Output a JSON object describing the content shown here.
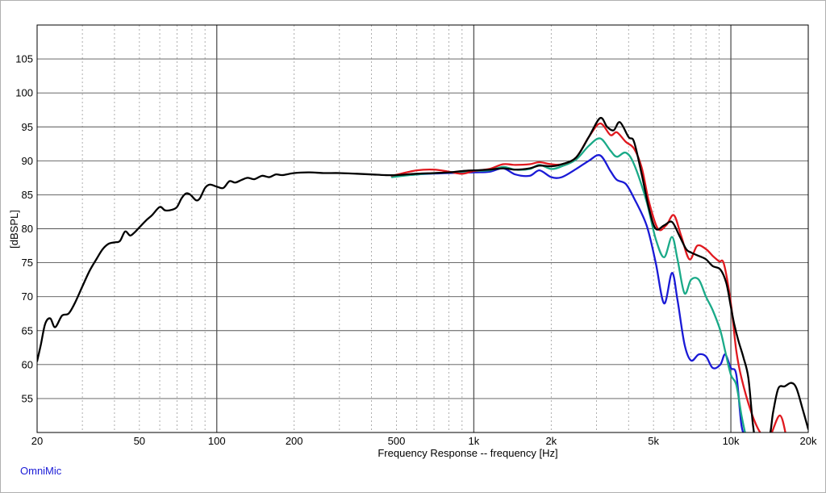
{
  "app": {
    "brand": "OmniMic",
    "brand_color": "#1a1ad6"
  },
  "chart_data": {
    "type": "line",
    "title": "",
    "xlabel": "Frequency Response -- frequency [Hz]",
    "ylabel": "[dBSPL]",
    "x_scale": "log",
    "xlim": [
      20,
      20000
    ],
    "ylim": [
      50,
      110
    ],
    "grid": true,
    "legend": "none",
    "x_tick_labels": [
      {
        "value": 20,
        "label": "20"
      },
      {
        "value": 50,
        "label": "50"
      },
      {
        "value": 100,
        "label": "100"
      },
      {
        "value": 200,
        "label": "200"
      },
      {
        "value": 500,
        "label": "500"
      },
      {
        "value": 1000,
        "label": "1k"
      },
      {
        "value": 2000,
        "label": "2k"
      },
      {
        "value": 5000,
        "label": "5k"
      },
      {
        "value": 10000,
        "label": "10k"
      },
      {
        "value": 20000,
        "label": "20k"
      }
    ],
    "y_ticks": [
      55,
      60,
      65,
      70,
      75,
      80,
      85,
      90,
      95,
      100,
      105
    ],
    "series": [
      {
        "color": "#1a1ad6",
        "points": [
          [
            480,
            87.7
          ],
          [
            600,
            88.0
          ],
          [
            800,
            88.2
          ],
          [
            1000,
            88.3
          ],
          [
            1150,
            88.4
          ],
          [
            1300,
            88.9
          ],
          [
            1450,
            88.0
          ],
          [
            1650,
            87.8
          ],
          [
            1800,
            88.6
          ],
          [
            2000,
            87.6
          ],
          [
            2200,
            87.6
          ],
          [
            2500,
            88.8
          ],
          [
            2800,
            90.0
          ],
          [
            3100,
            90.8
          ],
          [
            3400,
            88.5
          ],
          [
            3600,
            87.2
          ],
          [
            3900,
            86.6
          ],
          [
            4200,
            84.5
          ],
          [
            4700,
            80.5
          ],
          [
            5100,
            75.0
          ],
          [
            5500,
            69.0
          ],
          [
            5900,
            73.5
          ],
          [
            6200,
            69.5
          ],
          [
            6600,
            63.0
          ],
          [
            7000,
            60.6
          ],
          [
            7500,
            61.5
          ],
          [
            8000,
            61.2
          ],
          [
            8500,
            59.5
          ],
          [
            9100,
            60.0
          ],
          [
            9500,
            61.5
          ],
          [
            10000,
            59.5
          ],
          [
            10500,
            58.5
          ],
          [
            11000,
            51.0
          ],
          [
            11500,
            49
          ]
        ]
      },
      {
        "color": "#1aaa88",
        "points": [
          [
            480,
            87.6
          ],
          [
            600,
            88.0
          ],
          [
            800,
            88.3
          ],
          [
            1000,
            88.5
          ],
          [
            1150,
            88.6
          ],
          [
            1300,
            89.1
          ],
          [
            1450,
            88.7
          ],
          [
            1650,
            88.8
          ],
          [
            1800,
            89.4
          ],
          [
            2000,
            88.8
          ],
          [
            2200,
            89.2
          ],
          [
            2500,
            90.2
          ],
          [
            2800,
            92.2
          ],
          [
            3100,
            93.3
          ],
          [
            3400,
            91.5
          ],
          [
            3600,
            90.6
          ],
          [
            3900,
            91.2
          ],
          [
            4200,
            89.5
          ],
          [
            4700,
            84.0
          ],
          [
            5100,
            78.5
          ],
          [
            5500,
            75.8
          ],
          [
            5900,
            78.8
          ],
          [
            6200,
            75.5
          ],
          [
            6600,
            70.5
          ],
          [
            7000,
            72.5
          ],
          [
            7500,
            72.5
          ],
          [
            8000,
            70.0
          ],
          [
            8500,
            68.0
          ],
          [
            9100,
            65.0
          ],
          [
            9500,
            62.0
          ],
          [
            10000,
            58.5
          ],
          [
            10500,
            57.0
          ],
          [
            11000,
            52.5
          ],
          [
            11500,
            49
          ]
        ]
      },
      {
        "color": "#e0191f",
        "points": [
          [
            480,
            87.8
          ],
          [
            520,
            88.1
          ],
          [
            600,
            88.6
          ],
          [
            700,
            88.7
          ],
          [
            800,
            88.4
          ],
          [
            900,
            88.1
          ],
          [
            1000,
            88.5
          ],
          [
            1150,
            88.8
          ],
          [
            1300,
            89.5
          ],
          [
            1450,
            89.4
          ],
          [
            1650,
            89.5
          ],
          [
            1800,
            89.8
          ],
          [
            2000,
            89.5
          ],
          [
            2200,
            89.5
          ],
          [
            2500,
            90.5
          ],
          [
            2800,
            93.5
          ],
          [
            3100,
            95.5
          ],
          [
            3400,
            93.8
          ],
          [
            3600,
            94.2
          ],
          [
            3900,
            92.8
          ],
          [
            4200,
            91.8
          ],
          [
            4500,
            89.0
          ],
          [
            4800,
            84.0
          ],
          [
            5200,
            80.0
          ],
          [
            5600,
            80.5
          ],
          [
            6000,
            82.0
          ],
          [
            6400,
            79.0
          ],
          [
            6900,
            75.5
          ],
          [
            7400,
            77.5
          ],
          [
            8000,
            77.0
          ],
          [
            8500,
            76.0
          ],
          [
            9000,
            75.2
          ],
          [
            9400,
            74.8
          ],
          [
            10000,
            69.0
          ],
          [
            10500,
            62.0
          ],
          [
            11000,
            58.0
          ],
          [
            12000,
            53.0
          ],
          [
            13000,
            50.0
          ],
          [
            14000,
            49
          ],
          [
            15500,
            52.5
          ],
          [
            16500,
            49
          ]
        ]
      },
      {
        "color": "#000000",
        "points": [
          [
            20,
            60.5
          ],
          [
            20.7,
            63.0
          ],
          [
            21.5,
            66.0
          ],
          [
            22.5,
            66.8
          ],
          [
            23.5,
            65.5
          ],
          [
            25,
            67.2
          ],
          [
            26.5,
            67.5
          ],
          [
            28,
            69.0
          ],
          [
            30,
            71.5
          ],
          [
            32,
            73.8
          ],
          [
            34,
            75.5
          ],
          [
            36,
            77.0
          ],
          [
            38,
            77.8
          ],
          [
            40,
            78.0
          ],
          [
            42,
            78.2
          ],
          [
            44,
            79.6
          ],
          [
            46,
            79.0
          ],
          [
            48,
            79.5
          ],
          [
            50,
            80.2
          ],
          [
            53,
            81.2
          ],
          [
            56,
            82.0
          ],
          [
            60,
            83.2
          ],
          [
            63,
            82.7
          ],
          [
            67,
            82.8
          ],
          [
            70,
            83.2
          ],
          [
            73,
            84.5
          ],
          [
            76,
            85.2
          ],
          [
            79,
            85.0
          ],
          [
            83,
            84.2
          ],
          [
            86,
            84.5
          ],
          [
            90,
            86.0
          ],
          [
            94,
            86.5
          ],
          [
            100,
            86.2
          ],
          [
            106,
            86.0
          ],
          [
            112,
            87.0
          ],
          [
            118,
            86.8
          ],
          [
            125,
            87.2
          ],
          [
            132,
            87.5
          ],
          [
            140,
            87.3
          ],
          [
            150,
            87.8
          ],
          [
            160,
            87.6
          ],
          [
            170,
            88.0
          ],
          [
            180,
            87.9
          ],
          [
            200,
            88.2
          ],
          [
            230,
            88.3
          ],
          [
            260,
            88.2
          ],
          [
            300,
            88.2
          ],
          [
            350,
            88.1
          ],
          [
            400,
            88.0
          ],
          [
            450,
            87.9
          ],
          [
            500,
            87.9
          ],
          [
            600,
            88.1
          ],
          [
            700,
            88.2
          ],
          [
            800,
            88.3
          ],
          [
            900,
            88.5
          ],
          [
            1000,
            88.6
          ],
          [
            1150,
            88.7
          ],
          [
            1300,
            88.9
          ],
          [
            1450,
            88.7
          ],
          [
            1650,
            88.9
          ],
          [
            1800,
            89.3
          ],
          [
            2000,
            89.2
          ],
          [
            2200,
            89.5
          ],
          [
            2500,
            90.5
          ],
          [
            2800,
            93.5
          ],
          [
            3100,
            96.3
          ],
          [
            3300,
            95.0
          ],
          [
            3500,
            94.5
          ],
          [
            3700,
            95.7
          ],
          [
            4000,
            93.5
          ],
          [
            4200,
            92.8
          ],
          [
            4500,
            88.0
          ],
          [
            4800,
            83.0
          ],
          [
            5100,
            80.0
          ],
          [
            5500,
            80.5
          ],
          [
            5900,
            81.0
          ],
          [
            6300,
            79.0
          ],
          [
            6700,
            77.0
          ],
          [
            7000,
            76.5
          ],
          [
            7500,
            76.0
          ],
          [
            8000,
            75.5
          ],
          [
            8500,
            74.5
          ],
          [
            9100,
            74.0
          ],
          [
            9600,
            72.0
          ],
          [
            10000,
            68.5
          ],
          [
            10300,
            66.0
          ],
          [
            10700,
            63.5
          ],
          [
            11200,
            61.0
          ],
          [
            11700,
            58.0
          ],
          [
            12200,
            51.0
          ],
          [
            12600,
            49
          ],
          [
            14000,
            49
          ],
          [
            14600,
            53.0
          ],
          [
            15300,
            56.5
          ],
          [
            16200,
            56.8
          ],
          [
            17200,
            57.3
          ],
          [
            18000,
            56.5
          ],
          [
            19000,
            53.5
          ],
          [
            20000,
            50.5
          ]
        ]
      }
    ]
  }
}
